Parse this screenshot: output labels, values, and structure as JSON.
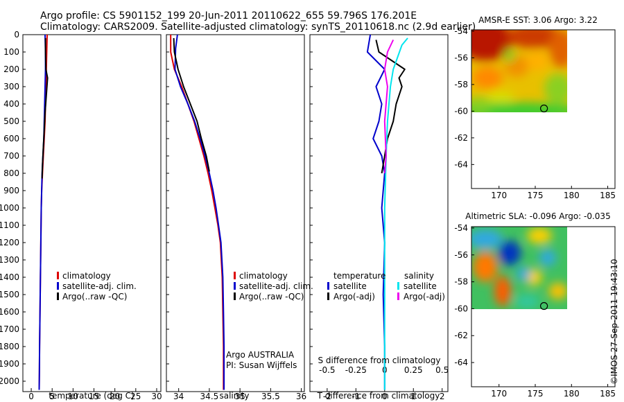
{
  "titles": {
    "line1": "Argo profile: CS 5901152_199 20-Jun-2011 20110622_655 59.796S 176.201E",
    "line2": "Climatology: CARS2009. Satellite-adjusted climatology: synTS_20110618.nc (2.9d earlier)"
  },
  "watermark": "©IMOS 27-Sep-2011 19:43:10",
  "colors": {
    "climatology": "#dd0000",
    "satellite": "#0000cc",
    "argo": "#000000",
    "sal_satellite": "#00e5ee",
    "sal_argo": "#ee00ee"
  },
  "chart_data": [
    {
      "id": "temperature",
      "type": "line",
      "xlabel": "temperature (deg C)",
      "xlim": [
        -2,
        31
      ],
      "xticks": [
        0,
        5,
        10,
        15,
        20,
        25,
        30
      ],
      "ylim": [
        2060,
        0
      ],
      "yticks": [
        0,
        100,
        200,
        300,
        400,
        500,
        600,
        700,
        800,
        900,
        1000,
        1100,
        1200,
        1300,
        1400,
        1500,
        1600,
        1700,
        1800,
        1900,
        2000
      ],
      "legend": [
        "climatology",
        "satellite-adj. clim.",
        "Argo(..raw -QC)"
      ],
      "series": [
        {
          "name": "climatology",
          "color_key": "climatology",
          "x": [
            3.8,
            3.7,
            3.6,
            3.5,
            3.4,
            3.3,
            3.1,
            2.9,
            2.7,
            2.5,
            2.4,
            2.3,
            2.2,
            2.1,
            2.0,
            1.95,
            1.9
          ],
          "y": [
            0,
            100,
            200,
            300,
            400,
            500,
            600,
            700,
            800,
            900,
            1000,
            1200,
            1400,
            1600,
            1800,
            1950,
            2050
          ]
        },
        {
          "name": "satellite-adj. clim.",
          "color_key": "satellite",
          "x": [
            3.3,
            3.4,
            3.4,
            3.3,
            3.2,
            3.1,
            3.0,
            2.8,
            2.6,
            2.5,
            2.4,
            2.3,
            2.2,
            2.1,
            2.0,
            1.95,
            1.9
          ],
          "y": [
            0,
            100,
            200,
            300,
            400,
            500,
            600,
            700,
            800,
            900,
            1000,
            1200,
            1400,
            1600,
            1800,
            1950,
            2050
          ]
        },
        {
          "name": "Argo(..raw -QC)",
          "color_key": "argo",
          "x": [
            3.4,
            3.4,
            3.5,
            3.9,
            3.6,
            3.3,
            3.1,
            2.9,
            2.7,
            2.6
          ],
          "y": [
            20,
            100,
            200,
            250,
            350,
            450,
            550,
            650,
            750,
            830
          ]
        }
      ]
    },
    {
      "id": "salinity",
      "type": "line",
      "xlabel": "salinity",
      "xlim": [
        33.8,
        36.05
      ],
      "xticks": [
        34,
        34.5,
        35,
        35.5,
        36
      ],
      "ylim": [
        2060,
        0
      ],
      "legend": [
        "climatology",
        "satellite-adj. clim.",
        "Argo(..raw -QC)"
      ],
      "annotation": [
        "Argo AUSTRALIA",
        "PI: Susan Wijffels"
      ],
      "series": [
        {
          "name": "climatology",
          "color_key": "climatology",
          "x": [
            33.87,
            33.87,
            33.93,
            34.05,
            34.15,
            34.25,
            34.33,
            34.41,
            34.48,
            34.54,
            34.59,
            34.64,
            34.68,
            34.71,
            34.72,
            34.73,
            34.73
          ],
          "y": [
            0,
            100,
            200,
            300,
            400,
            500,
            600,
            700,
            800,
            900,
            1000,
            1100,
            1200,
            1400,
            1600,
            1800,
            2050
          ]
        },
        {
          "name": "satellite-adj. clim.",
          "color_key": "satellite",
          "x": [
            33.98,
            33.95,
            33.94,
            34.03,
            34.15,
            34.26,
            34.35,
            34.43,
            34.5,
            34.56,
            34.61,
            34.65,
            34.69,
            34.72,
            34.73,
            34.74,
            34.74
          ],
          "y": [
            0,
            80,
            200,
            300,
            400,
            500,
            600,
            700,
            800,
            900,
            1000,
            1100,
            1200,
            1400,
            1600,
            1800,
            2050
          ]
        },
        {
          "name": "Argo(..raw -QC)",
          "color_key": "argo",
          "x": [
            33.92,
            33.93,
            33.99,
            34.08,
            34.19,
            34.3,
            34.37,
            34.45,
            34.5
          ],
          "y": [
            20,
            100,
            200,
            300,
            400,
            500,
            600,
            700,
            790
          ]
        }
      ]
    },
    {
      "id": "difference",
      "type": "line",
      "xlabel": "T difference from climatology",
      "x2label": "S difference from climatology",
      "xlim": [
        -2.6,
        2.2
      ],
      "xticks": [
        -2,
        -1,
        0,
        1,
        2
      ],
      "x2ticks": [
        "-0.5",
        "-0.25",
        "0",
        "0.25",
        "0.5"
      ],
      "ylim": [
        2060,
        0
      ],
      "legend_left": {
        "title": "temperature",
        "items": [
          "satellite",
          "Argo(-adj)"
        ]
      },
      "legend_right": {
        "title": "salinity",
        "items": [
          "satellite",
          "Argo(-adj)"
        ]
      },
      "series": [
        {
          "name": "temperature satellite",
          "color_key": "satellite",
          "x": [
            -0.5,
            -0.6,
            0.0,
            -0.3,
            -0.1,
            -0.2,
            -0.4,
            -0.1,
            0.0,
            -0.1,
            0.0,
            -0.05,
            0.0,
            0.0
          ],
          "y": [
            0,
            100,
            200,
            300,
            400,
            500,
            600,
            700,
            800,
            1000,
            1200,
            1500,
            1800,
            2050
          ]
        },
        {
          "name": "temperature Argo(-adj)",
          "color_key": "argo",
          "x": [
            -0.3,
            -0.2,
            0.7,
            0.5,
            0.6,
            0.4,
            0.3,
            0.1,
            0.0,
            -0.1
          ],
          "y": [
            30,
            100,
            200,
            250,
            300,
            400,
            500,
            600,
            700,
            800
          ]
        },
        {
          "name": "salinity satellite",
          "color_key": "sal_satellite",
          "x": [
            0.8,
            0.6,
            0.3,
            0.2,
            0.1,
            0.05,
            0.0,
            0.0,
            0.0
          ],
          "y": [
            20,
            60,
            200,
            300,
            500,
            700,
            1000,
            1500,
            2050
          ]
        },
        {
          "name": "salinity Argo(-adj)",
          "color_key": "sal_argo",
          "x": [
            0.3,
            0.1,
            0.0,
            0.1,
            0.0,
            0.05,
            0.0
          ],
          "y": [
            30,
            100,
            200,
            300,
            500,
            700,
            800
          ]
        }
      ]
    },
    {
      "id": "sst_map",
      "type": "heatmap",
      "title": "AMSR-E SST: 3.06 Argo: 3.22",
      "xlim": [
        166.2,
        186.0
      ],
      "ylim": [
        -65.8,
        -53.9
      ],
      "xticks": [
        170,
        175,
        180,
        185
      ],
      "yticks": [
        -54,
        -56,
        -58,
        -60,
        -62,
        -64
      ],
      "argo_position": [
        176.201,
        -59.796
      ]
    },
    {
      "id": "sla_map",
      "type": "heatmap",
      "title": "Altimetric SLA: -0.096 Argo: -0.035",
      "xlim": [
        166.2,
        186.0
      ],
      "ylim": [
        -65.8,
        -53.9
      ],
      "xticks": [
        170,
        175,
        180,
        185
      ],
      "yticks": [
        -54,
        -56,
        -58,
        -60,
        -62,
        -64
      ],
      "argo_position": [
        176.201,
        -59.796
      ]
    }
  ]
}
